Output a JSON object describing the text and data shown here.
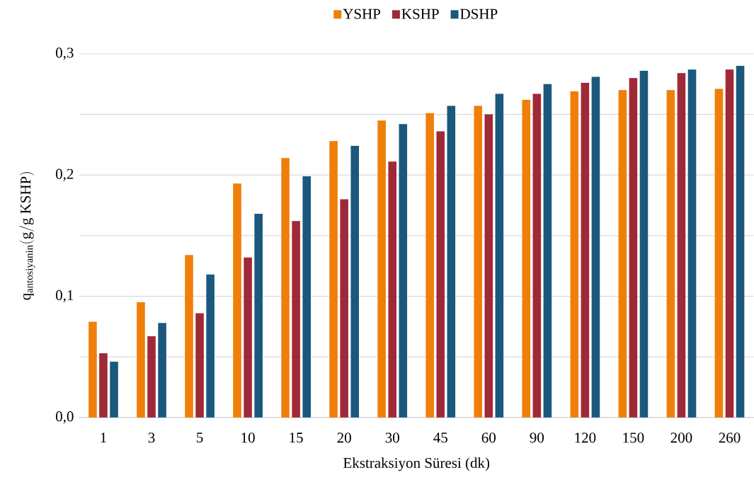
{
  "chart_data": {
    "type": "bar",
    "xlabel": "Ekstraksiyon Süresi (dk)",
    "ylabel": "\\mathrm{q_{antosiyanin}(g/g\\ KSHP)}",
    "categories": [
      "1",
      "3",
      "5",
      "10",
      "15",
      "20",
      "30",
      "45",
      "60",
      "90",
      "120",
      "150",
      "200",
      "260"
    ],
    "series": [
      {
        "name": "YSHP",
        "color": "#f07f09",
        "values": [
          0.079,
          0.095,
          0.134,
          0.193,
          0.214,
          0.228,
          0.245,
          0.251,
          0.257,
          0.262,
          0.269,
          0.27,
          0.27,
          0.271
        ]
      },
      {
        "name": "KSHP",
        "color": "#9f2936",
        "values": [
          0.053,
          0.067,
          0.086,
          0.132,
          0.162,
          0.18,
          0.211,
          0.236,
          0.25,
          0.267,
          0.276,
          0.28,
          0.284,
          0.287
        ]
      },
      {
        "name": "DSHP",
        "color": "#1b587c",
        "values": [
          0.046,
          0.078,
          0.118,
          0.168,
          0.199,
          0.224,
          0.242,
          0.257,
          0.267,
          0.275,
          0.281,
          0.286,
          0.287,
          0.29
        ]
      }
    ],
    "ylim": [
      0,
      0.3
    ],
    "yticks": [
      {
        "value": 0,
        "label": "0,0"
      },
      {
        "value": 0.05,
        "label": null
      },
      {
        "value": 0.1,
        "label": "0,1"
      },
      {
        "value": 0.15,
        "label": null
      },
      {
        "value": 0.2,
        "label": "0,2"
      },
      {
        "value": 0.25,
        "label": null
      },
      {
        "value": 0.3,
        "label": "0,3"
      }
    ],
    "grid": "y",
    "legend": "top"
  }
}
